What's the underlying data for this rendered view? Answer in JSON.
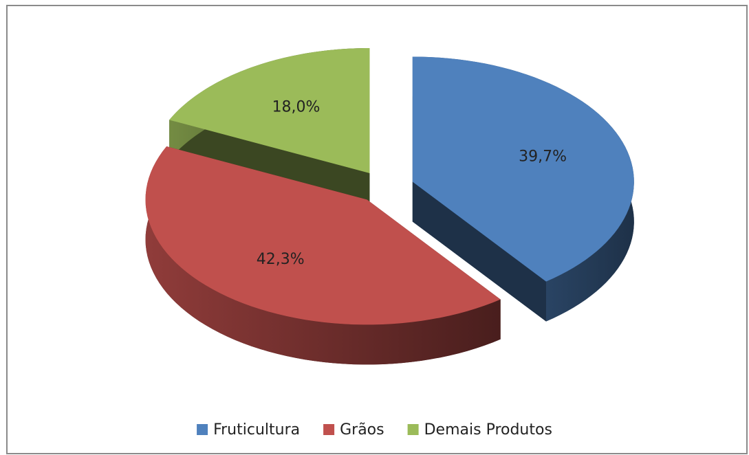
{
  "chart_data": {
    "type": "pie",
    "categories": [
      "Fruticultura",
      "Grãos",
      "Demais Produtos"
    ],
    "values": [
      39.7,
      42.3,
      18.0
    ],
    "value_labels": [
      "39,7%",
      "42,3%",
      "18,0%"
    ],
    "colors": [
      "#4f81bd",
      "#c0504d",
      "#9bbb59"
    ],
    "legend": "bottom"
  }
}
